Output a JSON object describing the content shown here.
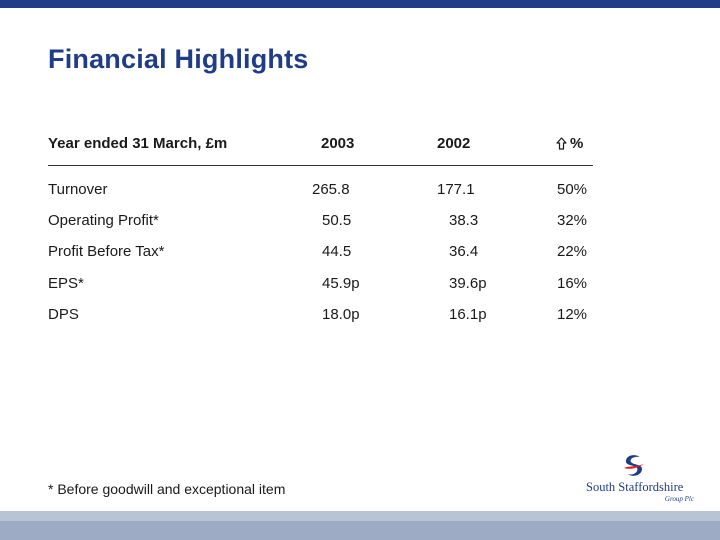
{
  "title": "Financial Highlights",
  "header": {
    "label": "Year ended 31 March, £m",
    "col_2003": "2003",
    "col_2002": "2002",
    "col_change": "%"
  },
  "rows": [
    {
      "label": "Turnover",
      "v2003": "265.8",
      "v2002": "177.1",
      "change": "50%"
    },
    {
      "label": "Operating Profit*",
      "v2003": "50.5",
      "v2002": "38.3",
      "change": "32%"
    },
    {
      "label": "Profit Before Tax*",
      "v2003": "44.5",
      "v2002": "36.4",
      "change": "22%"
    },
    {
      "label": "EPS*",
      "v2003": "45.9p",
      "v2002": "39.6p",
      "change": "16%"
    },
    {
      "label": "DPS",
      "v2003": "18.0p",
      "v2002": "16.1p",
      "change": "12%"
    }
  ],
  "footnote": "* Before goodwill and exceptional item",
  "logo": {
    "name": "South Staffordshire",
    "sub": "Group Plc",
    "icon": "swoosh-logo-icon"
  },
  "colors": {
    "brand_blue": "#1f3c88",
    "logo_red": "#d0202f",
    "footer_band": "#b9c3d6"
  }
}
